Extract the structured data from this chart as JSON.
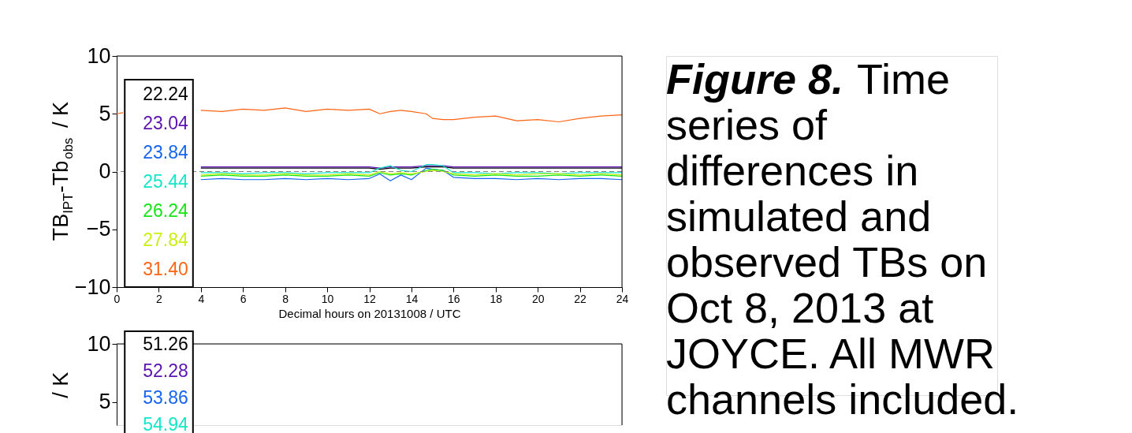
{
  "chart_data": [
    {
      "type": "line",
      "xlabel": "Decimal hours on 20131008 / UTC",
      "ylabel": "TB$_{IPT}$-Tb$_{obs}$ / K",
      "x": [
        0,
        0.3,
        2,
        4,
        5,
        6,
        7,
        8,
        9,
        10,
        11,
        12,
        12.5,
        13,
        13.5,
        14,
        14.7,
        15,
        15.5,
        16,
        17,
        18,
        19,
        20,
        21,
        22,
        23,
        24
      ],
      "xlim": [
        0,
        24
      ],
      "xticks": [
        0,
        2,
        4,
        6,
        8,
        10,
        12,
        14,
        16,
        18,
        20,
        22,
        24
      ],
      "ylim": [
        -10,
        10
      ],
      "yticks": [
        -10,
        -5,
        0,
        5,
        10
      ],
      "grid": false,
      "legend": "left",
      "marker": "none",
      "line_style": "solid",
      "ref_lines": [
        {
          "axis": "y",
          "value": 0,
          "color": "#808080",
          "line_style": "dashed"
        }
      ],
      "annotations": [
        "Figure 8.",
        "Time series of differences in simulated and observed TBs on Oct 8, 2013 at JOYCE. All MWR channels included."
      ],
      "series": [
        {
          "name": "22.24",
          "color": "#000000",
          "values": [
            null,
            null,
            null,
            0.3,
            0.3,
            0.3,
            0.3,
            0.3,
            0.3,
            0.3,
            0.3,
            0.3,
            0.2,
            0.3,
            0.3,
            0.3,
            0.4,
            0.4,
            0.4,
            0.3,
            0.3,
            0.3,
            0.3,
            0.3,
            0.3,
            0.3,
            0.3,
            0.3
          ]
        },
        {
          "name": "23.04",
          "color": "#5a12b0",
          "values": [
            null,
            null,
            null,
            0.4,
            0.4,
            0.4,
            0.4,
            0.4,
            0.4,
            0.4,
            0.4,
            0.4,
            0.3,
            0.4,
            0.4,
            0.4,
            0.5,
            0.5,
            0.5,
            0.4,
            0.4,
            0.4,
            0.4,
            0.4,
            0.4,
            0.4,
            0.4,
            0.4
          ]
        },
        {
          "name": "23.84",
          "color": "#1464f0",
          "values": [
            null,
            null,
            null,
            -0.7,
            -0.6,
            -0.7,
            -0.7,
            -0.6,
            -0.7,
            -0.6,
            -0.7,
            -0.6,
            -0.2,
            -0.8,
            -0.3,
            -0.7,
            0.3,
            0.2,
            0.1,
            -0.5,
            -0.6,
            -0.6,
            -0.7,
            -0.6,
            -0.7,
            -0.6,
            -0.6,
            -0.7
          ]
        },
        {
          "name": "25.44",
          "color": "#14e6c8",
          "values": [
            null,
            null,
            null,
            -0.1,
            -0.1,
            -0.2,
            -0.1,
            -0.1,
            -0.2,
            -0.1,
            -0.1,
            -0.1,
            0.3,
            0.5,
            0.1,
            0.0,
            0.6,
            0.6,
            0.5,
            -0.1,
            -0.1,
            -0.2,
            -0.1,
            -0.1,
            -0.2,
            -0.1,
            -0.1,
            -0.1
          ]
        },
        {
          "name": "26.24",
          "color": "#14e614",
          "values": [
            null,
            null,
            null,
            -0.4,
            -0.3,
            -0.4,
            -0.4,
            -0.3,
            -0.4,
            -0.4,
            -0.3,
            -0.4,
            -0.1,
            -0.3,
            -0.2,
            -0.3,
            0.1,
            0.2,
            0.1,
            -0.3,
            -0.4,
            -0.3,
            -0.4,
            -0.4,
            -0.3,
            -0.4,
            -0.3,
            -0.4
          ]
        },
        {
          "name": "27.84",
          "color": "#c8f014",
          "values": [
            null,
            null,
            null,
            -0.3,
            -0.2,
            -0.3,
            -0.3,
            -0.2,
            -0.3,
            -0.3,
            -0.2,
            -0.3,
            0.0,
            -0.2,
            -0.1,
            -0.2,
            0.0,
            0.1,
            0.0,
            -0.2,
            -0.3,
            -0.2,
            -0.3,
            -0.2,
            -0.2,
            -0.3,
            -0.2,
            -0.3
          ]
        },
        {
          "name": "31.40",
          "color": "#ff6414",
          "values": [
            5.0,
            5.1,
            null,
            5.3,
            5.2,
            5.4,
            5.3,
            5.5,
            5.2,
            5.4,
            5.3,
            5.4,
            5.0,
            5.2,
            5.3,
            5.2,
            5.0,
            4.6,
            4.5,
            4.5,
            4.7,
            4.8,
            4.4,
            4.5,
            4.3,
            4.6,
            4.8,
            4.9
          ]
        }
      ]
    },
    {
      "type": "line",
      "ylabel": "/ K",
      "ylim": [
        3,
        10
      ],
      "yticks": [
        5,
        10
      ],
      "tick_labels": "y",
      "grid": false,
      "series": [
        {
          "name": "51.26",
          "color": "#000000"
        },
        {
          "name": "52.28",
          "color": "#5a12b0"
        },
        {
          "name": "53.86",
          "color": "#1464f0"
        },
        {
          "name": "54.94",
          "color": "#14e6c8"
        }
      ]
    }
  ]
}
